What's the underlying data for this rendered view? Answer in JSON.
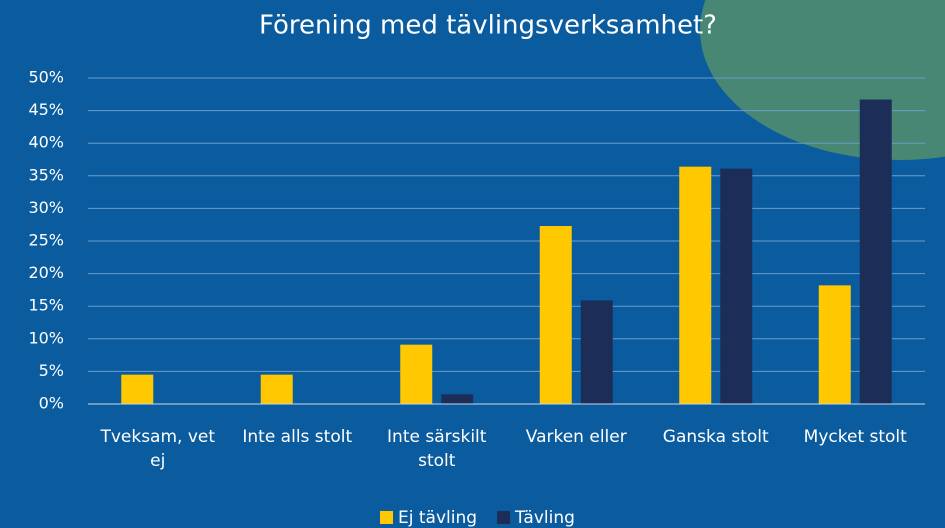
{
  "chart_data": {
    "type": "bar",
    "title": "Förening med tävlingsverksamhet?",
    "categories": [
      "Tveksam, vet ej",
      "Inte alls stolt",
      "Inte särskilt stolt",
      "Varken eller",
      "Ganska stolt",
      "Mycket stolt"
    ],
    "series": [
      {
        "name": "Ej tävling",
        "color": "#ffc800",
        "values": [
          4.5,
          4.5,
          9.1,
          27.3,
          36.4,
          18.2
        ]
      },
      {
        "name": "Tävling",
        "color": "#1c2e58",
        "values": [
          0,
          0,
          1.5,
          15.9,
          36.1,
          46.7
        ]
      }
    ],
    "ylim": [
      0,
      50
    ],
    "yticks": [
      {
        "value": 0,
        "label": "0%"
      },
      {
        "value": 5,
        "label": "5%"
      },
      {
        "value": 10,
        "label": "10%"
      },
      {
        "value": 15,
        "label": "15%"
      },
      {
        "value": 20,
        "label": "20%"
      },
      {
        "value": 25,
        "label": "25%"
      },
      {
        "value": 30,
        "label": "30%"
      },
      {
        "value": 35,
        "label": "35%"
      },
      {
        "value": 40,
        "label": "40%"
      },
      {
        "value": 45,
        "label": "45%"
      },
      {
        "value": 50,
        "label": "50%"
      }
    ],
    "grid": true,
    "legend": "bottom"
  }
}
